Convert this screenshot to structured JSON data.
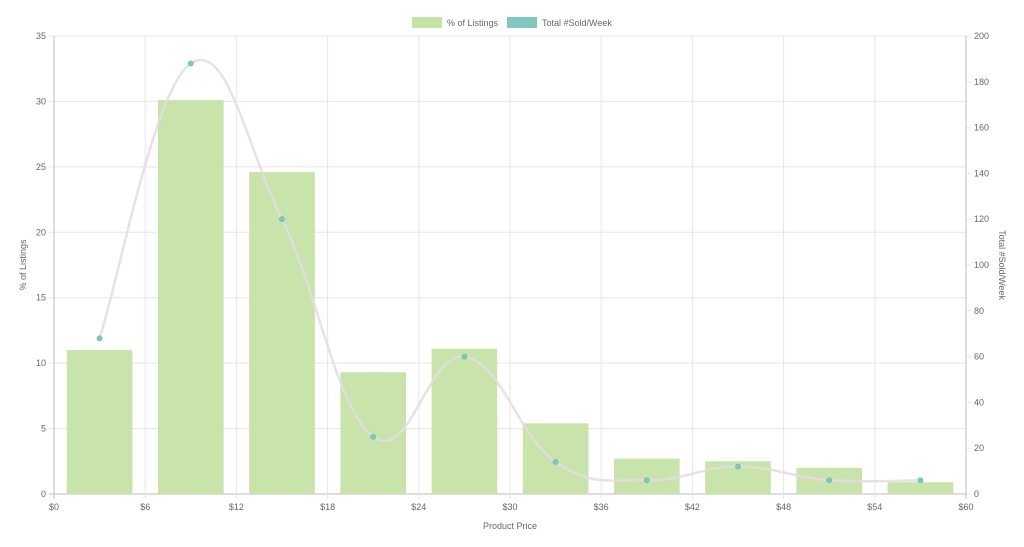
{
  "chart_data": {
    "type": "bar",
    "xlabel": "Product Price",
    "ylabel": "% of Listings",
    "y2label": "Total #Sold/Week",
    "x_ticks": [
      "$0",
      "$6",
      "$12",
      "$18",
      "$24",
      "$30",
      "$36",
      "$42",
      "$48",
      "$54",
      "$60"
    ],
    "xlim": [
      0,
      60
    ],
    "ylim": [
      0,
      35
    ],
    "y_ticks": [
      0,
      5,
      10,
      15,
      20,
      25,
      30,
      35
    ],
    "y2lim": [
      0,
      200
    ],
    "y2_ticks": [
      0,
      20,
      40,
      60,
      80,
      100,
      120,
      140,
      160,
      180,
      200
    ],
    "grid": true,
    "legend_position": "top-center",
    "x": [
      3,
      9,
      15,
      21,
      27,
      33,
      39,
      45,
      51,
      57
    ],
    "series": [
      {
        "name": "% of Listings",
        "kind": "bar",
        "axis": "left",
        "color": "#c5e3a5",
        "values": [
          11.0,
          30.1,
          24.6,
          9.3,
          11.1,
          5.4,
          2.7,
          2.5,
          2.0,
          0.9
        ]
      },
      {
        "name": "Total #Sold/Week",
        "kind": "line",
        "axis": "right",
        "color": "#7ec8c0",
        "line_color": "#e3dde0",
        "values": [
          68,
          188,
          120,
          25,
          60,
          14,
          6,
          12,
          6,
          6
        ]
      }
    ]
  }
}
